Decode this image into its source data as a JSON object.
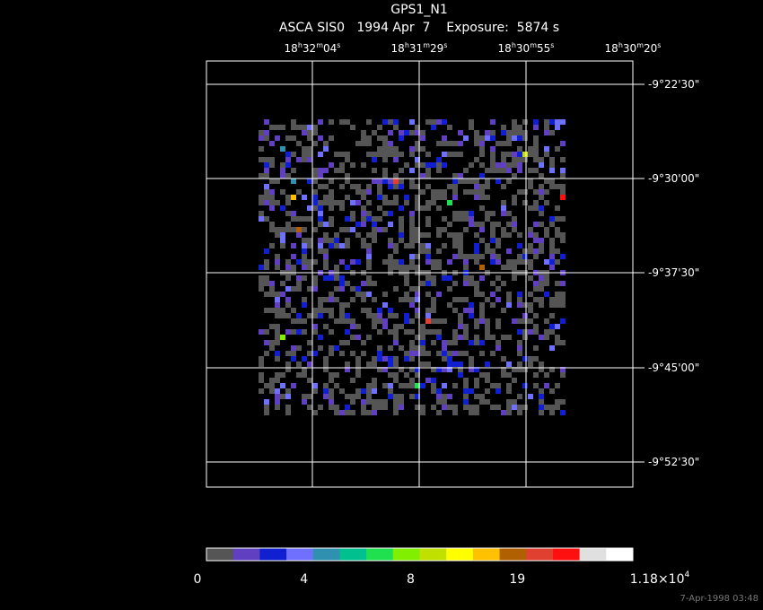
{
  "header": {
    "title": "GPS1_N1",
    "subtitle": "ASCA SIS0   1994 Apr  7    Exposure:  5874 s"
  },
  "ra_labels": [
    [
      "18",
      "h",
      "32",
      "m",
      "04",
      "s"
    ],
    [
      "18",
      "h",
      "31",
      "m",
      "29",
      "s"
    ],
    [
      "18",
      "h",
      "30",
      "m",
      "55",
      "s"
    ],
    [
      "18",
      "h",
      "30",
      "m",
      "20",
      "s"
    ]
  ],
  "dec_labels": [
    "-9°22'30\"",
    "-9°30'00\"",
    "-9°37'30\"",
    "-9°45'00\"",
    "-9°52'30\""
  ],
  "colorbar": {
    "colors": [
      "#555555",
      "#6040c0",
      "#1020d0",
      "#7070ff",
      "#3090b0",
      "#00c090",
      "#20e050",
      "#80f000",
      "#c0e000",
      "#ffff00",
      "#ffc000",
      "#b06000",
      "#e04030",
      "#ff1010",
      "#e0e0e0",
      "#ffffff"
    ],
    "labels": [
      [
        "0"
      ],
      [
        "4"
      ],
      [
        "8"
      ],
      [
        "19"
      ],
      [
        "1.18×10",
        "4"
      ]
    ]
  },
  "timestamp": "7-Apr-1998 03:48"
}
